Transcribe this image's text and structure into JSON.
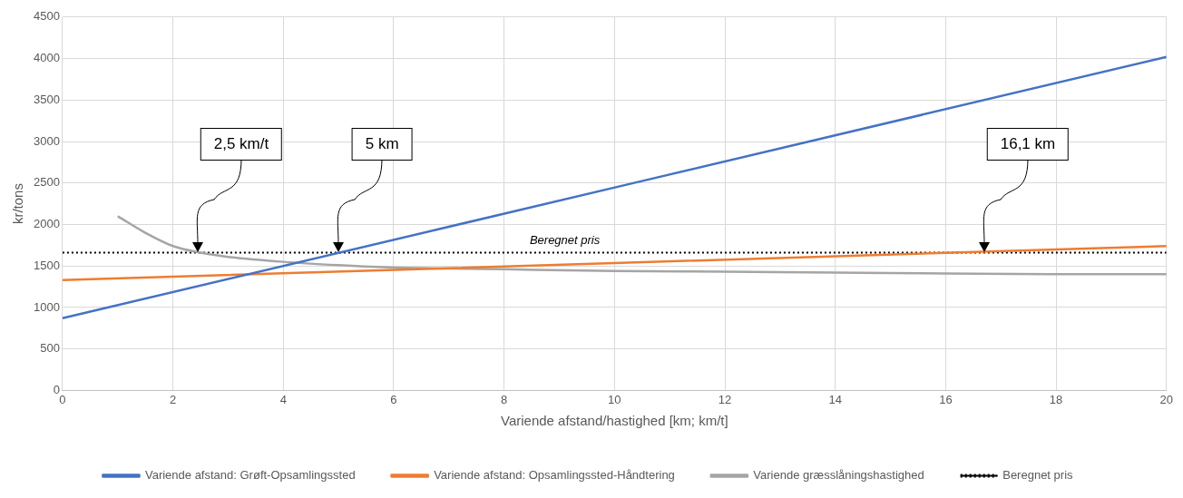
{
  "chart_data": {
    "type": "line",
    "xlabel": "Variende afstand/hastighed [km; km/t]",
    "ylabel": "kr/tons",
    "xlim": [
      0,
      20
    ],
    "xticks": [
      0,
      2,
      4,
      6,
      8,
      10,
      12,
      14,
      16,
      18,
      20
    ],
    "ylim": [
      0,
      4500
    ],
    "yticks": [
      0,
      500,
      1000,
      1500,
      2000,
      2500,
      3000,
      3500,
      4000,
      4500
    ],
    "grid": true,
    "legend": "bottom",
    "marker": "none",
    "series": [
      {
        "name": "Variende afstand: Grøft-Opsamlingssted",
        "color": "#4472c4",
        "x": [
          0,
          20
        ],
        "values": [
          870,
          4020
        ]
      },
      {
        "name": "Variende afstand: Opsamlingssted-Håndtering",
        "color": "#ed7d31",
        "x": [
          0,
          20
        ],
        "values": [
          1330,
          1740
        ]
      },
      {
        "name": "Variende græsslåningshastighed",
        "color": "#a5a5a5",
        "x": [
          1,
          1.5,
          2,
          2.5,
          3,
          4,
          5,
          6,
          7,
          8,
          10,
          12,
          14,
          16,
          18,
          20
        ],
        "values": [
          2100,
          1900,
          1740,
          1660,
          1610,
          1550,
          1510,
          1480,
          1470,
          1460,
          1440,
          1430,
          1420,
          1410,
          1400,
          1400
        ]
      },
      {
        "name": "Beregnet pris",
        "color": "#000000",
        "x": [
          0,
          20
        ],
        "values": [
          1660,
          1660
        ],
        "line_style": "dotted"
      }
    ],
    "annotations": [
      "Beregnet pris",
      "2,5 km/t",
      "5 km",
      "16,1 km"
    ]
  }
}
